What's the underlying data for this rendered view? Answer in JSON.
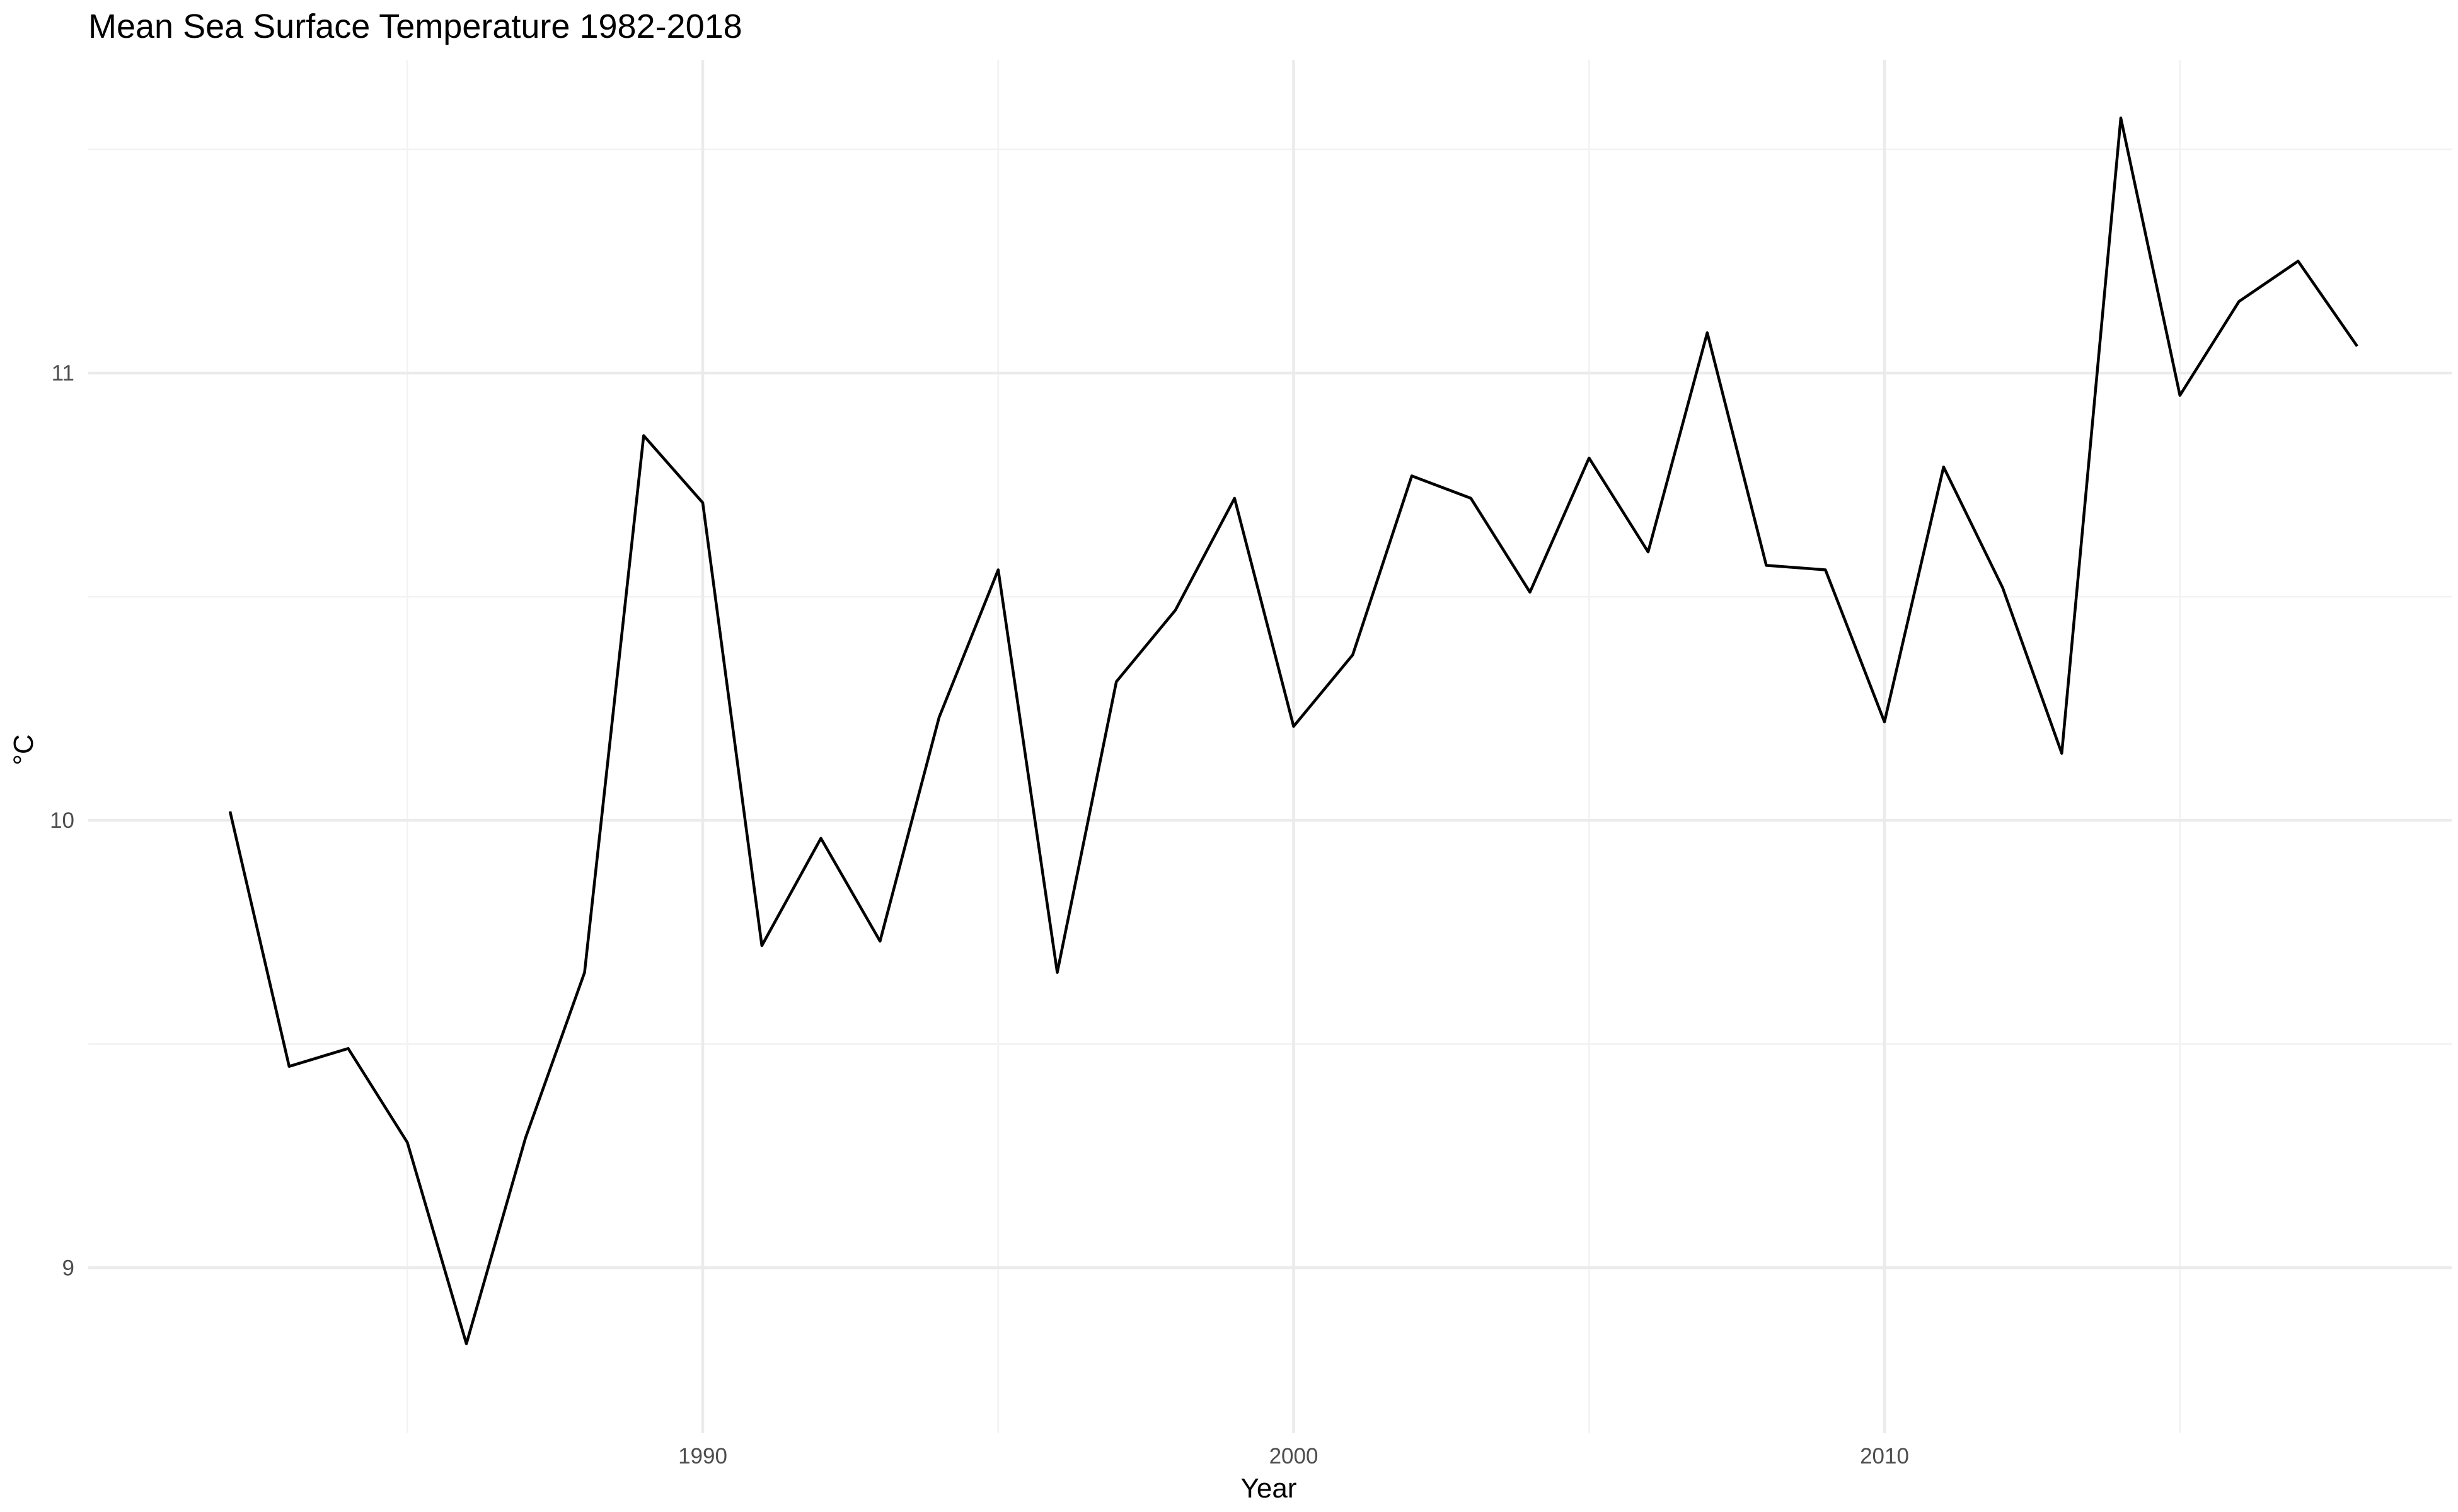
{
  "chart_data": {
    "type": "line",
    "title": "Mean Sea Surface Temperature 1982-2018",
    "xlabel": "Year",
    "ylabel": "°C",
    "xlim": [
      1979.6,
      2019.6
    ],
    "ylim": [
      8.63,
      11.7
    ],
    "grid": true,
    "legend": "none",
    "x_ticks": [
      1990,
      2000,
      2010
    ],
    "x_minor_ticks": [
      1985,
      1995,
      2005,
      2015
    ],
    "y_ticks": [
      9,
      10,
      11
    ],
    "y_minor_ticks": [
      9.5,
      10.5,
      11.5
    ],
    "line_color": "#000000",
    "series": [
      {
        "x": [
          1982,
          1983,
          1984,
          1985,
          1986,
          1987,
          1988,
          1989,
          1990,
          1991,
          1992,
          1993,
          1994,
          1995,
          1996,
          1997,
          1998,
          1999,
          2000,
          2001,
          2002,
          2003,
          2004,
          2005,
          2006,
          2007,
          2008,
          2009,
          2010,
          2011,
          2012,
          2013,
          2014,
          2015,
          2016,
          2017,
          2018
        ],
        "values": [
          10.02,
          9.45,
          9.49,
          9.28,
          8.83,
          9.29,
          9.66,
          10.86,
          10.71,
          9.72,
          9.96,
          9.73,
          10.23,
          10.56,
          9.66,
          10.31,
          10.47,
          10.72,
          10.21,
          10.37,
          10.77,
          10.72,
          10.51,
          10.81,
          10.6,
          11.09,
          10.57,
          10.56,
          10.22,
          10.79,
          10.52,
          10.15,
          11.57,
          10.95,
          11.16,
          11.25,
          11.06
        ]
      }
    ]
  }
}
